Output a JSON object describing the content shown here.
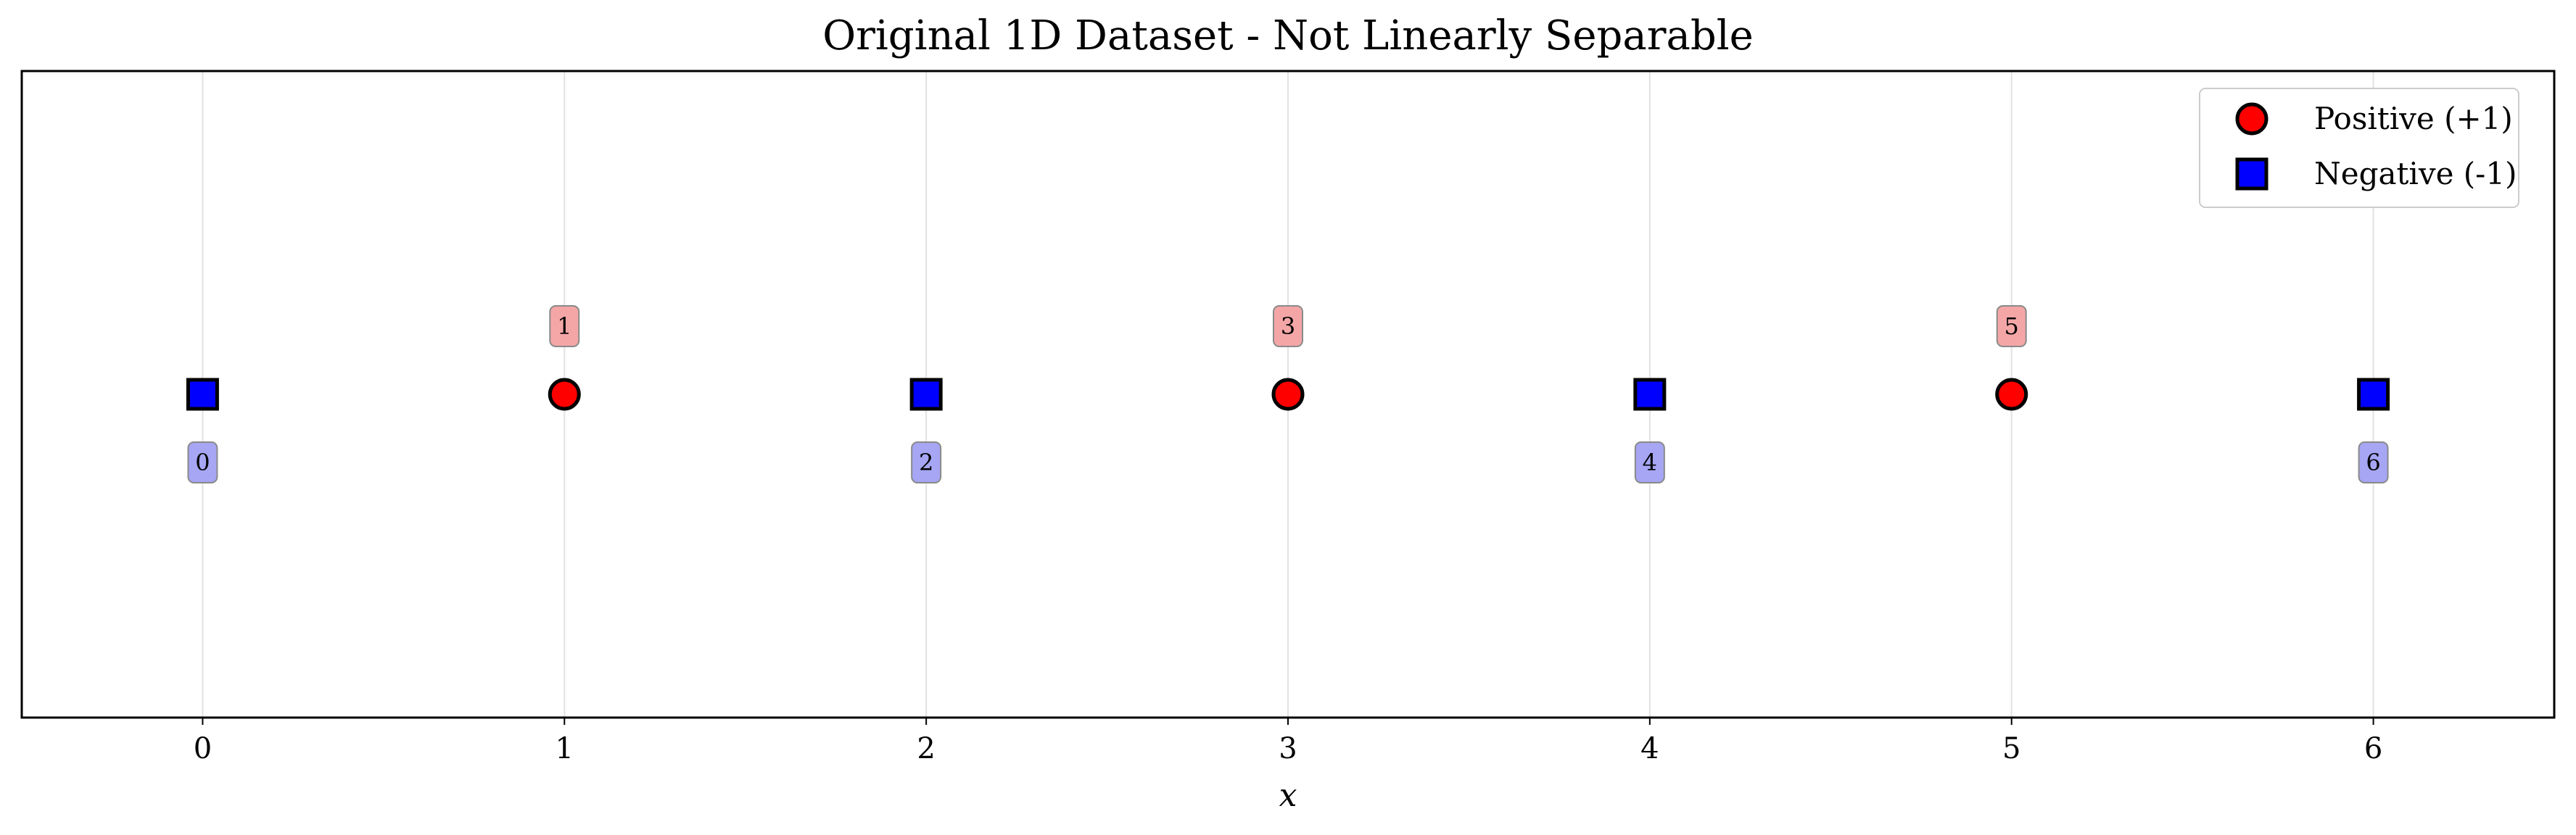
{
  "chart_data": {
    "type": "scatter",
    "title": "Original 1D Dataset - Not Linearly Separable",
    "xlabel": "x",
    "ylabel": "",
    "xlim": [
      -0.5,
      6.5
    ],
    "ylim": [
      -1,
      1
    ],
    "x_ticks": [
      "0",
      "1",
      "2",
      "3",
      "4",
      "5",
      "6"
    ],
    "grid": "vertical",
    "legend_position": "top-right",
    "series": [
      {
        "name": "Positive (+1)",
        "marker": "circle",
        "color": "#ff0000",
        "x": [
          1,
          3,
          5
        ],
        "y": [
          0,
          0,
          0
        ],
        "point_labels": [
          "1",
          "3",
          "5"
        ],
        "label_color": "#f4a6a6"
      },
      {
        "name": "Negative (-1)",
        "marker": "square",
        "color": "#0000ff",
        "x": [
          0,
          2,
          4,
          6
        ],
        "y": [
          0,
          0,
          0,
          0
        ],
        "point_labels": [
          "0",
          "2",
          "4",
          "6"
        ],
        "label_color": "#a6a6f4"
      }
    ]
  }
}
